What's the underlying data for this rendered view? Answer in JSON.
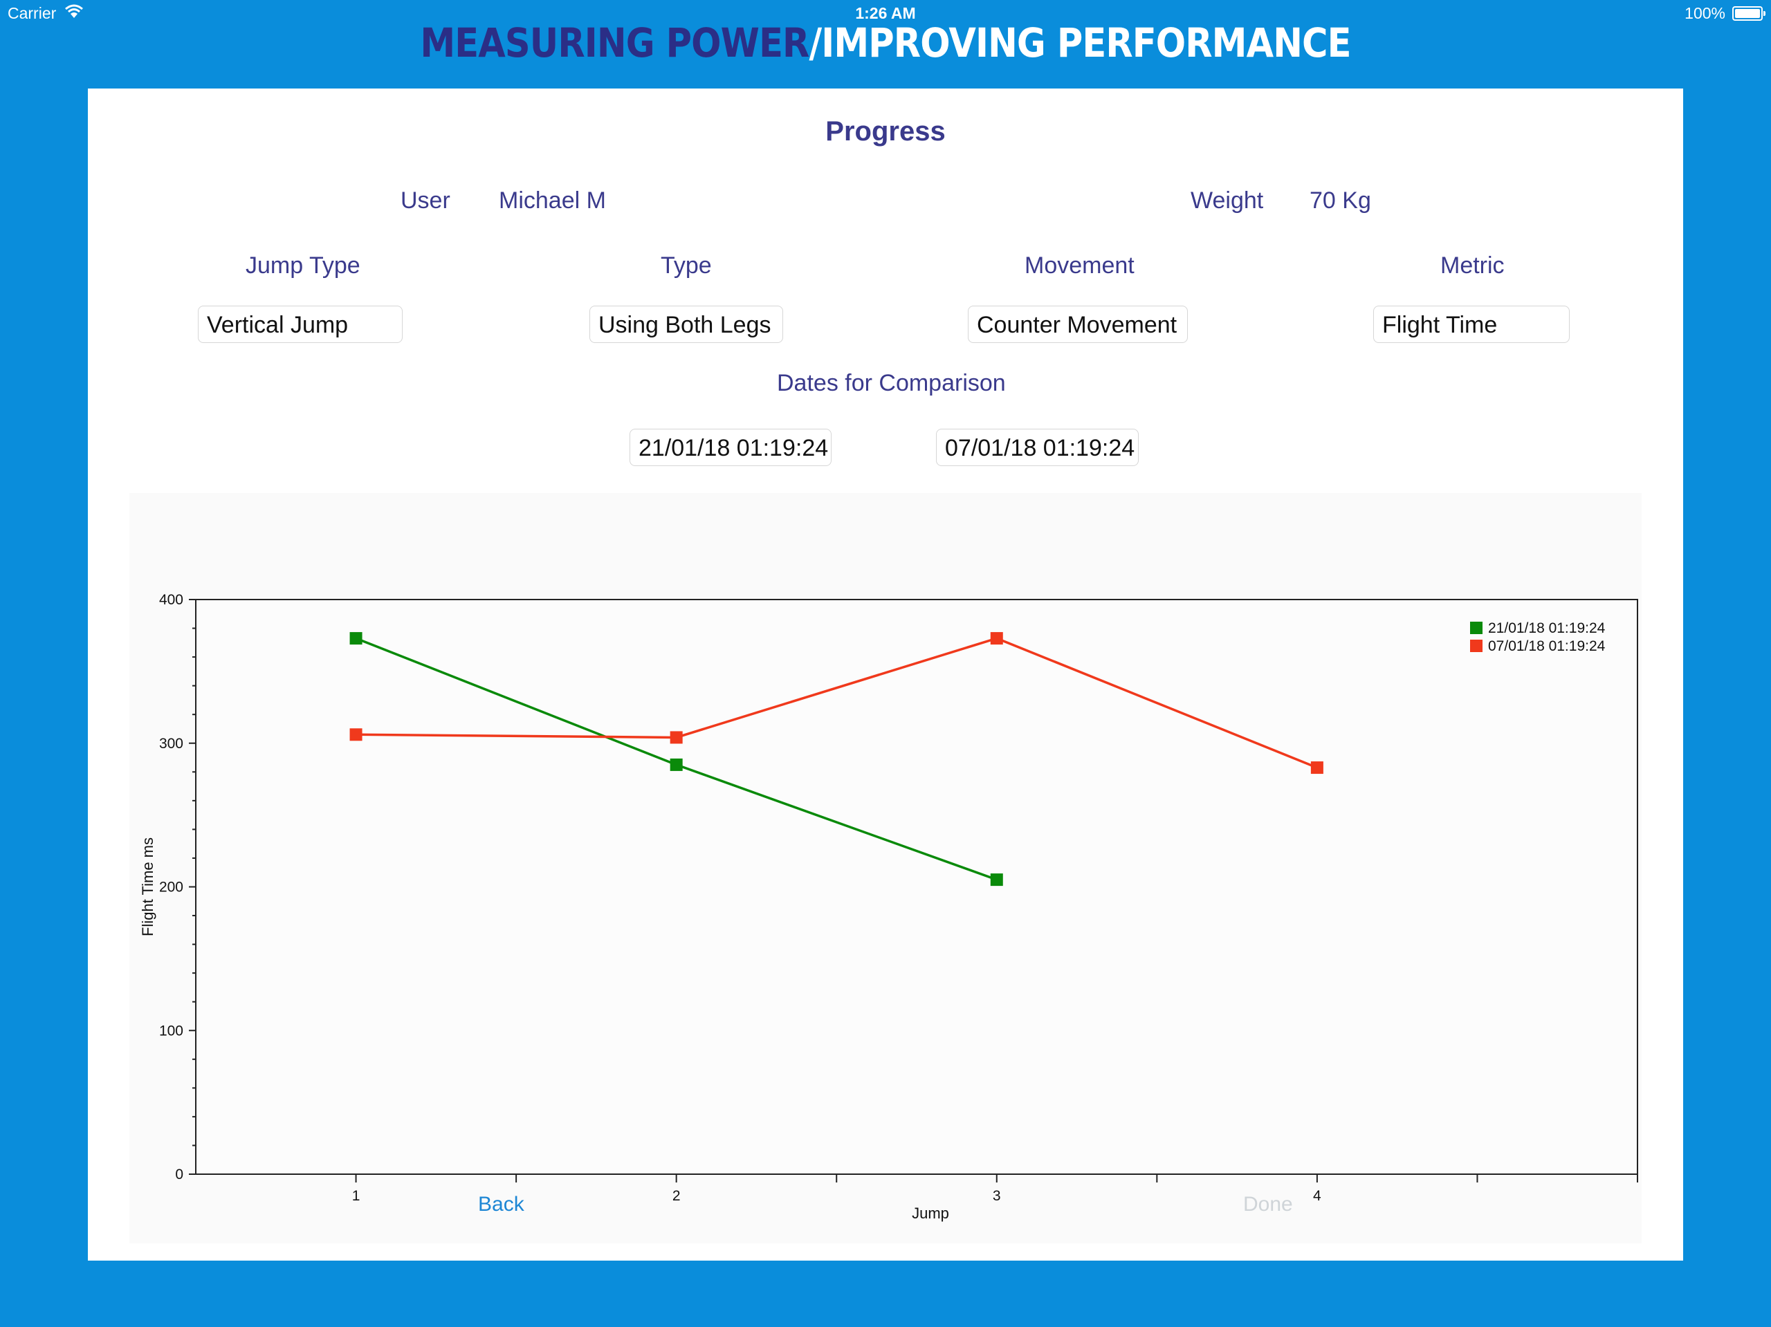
{
  "status": {
    "carrier": "Carrier",
    "time": "1:26 AM",
    "battery": "100%"
  },
  "banner": {
    "part1": "MEASURING POWER",
    "part2": "/IMPROVING PERFORMANCE"
  },
  "page": {
    "title": "Progress"
  },
  "user": {
    "label": "User",
    "value": "Michael M"
  },
  "weight": {
    "label": "Weight",
    "value": "70 Kg"
  },
  "selectors": {
    "jump_type": {
      "label": "Jump Type",
      "value": "Vertical Jump"
    },
    "type": {
      "label": "Type",
      "value": "Using Both Legs"
    },
    "movement": {
      "label": "Movement",
      "value": "Counter Movement"
    },
    "metric": {
      "label": "Metric",
      "value": "Flight Time"
    }
  },
  "comparison": {
    "label": "Dates for Comparison",
    "date1": "21/01/18 01:19:24",
    "date2": "07/01/18 01:19:24"
  },
  "buttons": {
    "back": "Back",
    "done": "Done"
  },
  "colors": {
    "series1": "#0a8a0a",
    "series2": "#f0391c",
    "accent": "#1d86d4"
  },
  "chart_data": {
    "type": "line",
    "xlabel": "Jump",
    "ylabel": "Flight Time ms",
    "xlim": [
      0.5,
      5
    ],
    "ylim": [
      0,
      400
    ],
    "x_ticks": [
      1,
      2,
      3,
      4
    ],
    "y_ticks": [
      0,
      100,
      200,
      300,
      400
    ],
    "legend_position": "top-right",
    "grid": false,
    "series": [
      {
        "name": "21/01/18 01:19:24",
        "color": "#0a8a0a",
        "x": [
          1,
          2,
          3
        ],
        "values": [
          373,
          285,
          205
        ]
      },
      {
        "name": "07/01/18 01:19:24",
        "color": "#f0391c",
        "x": [
          1,
          2,
          3,
          4
        ],
        "values": [
          306,
          304,
          373,
          283
        ]
      }
    ]
  }
}
